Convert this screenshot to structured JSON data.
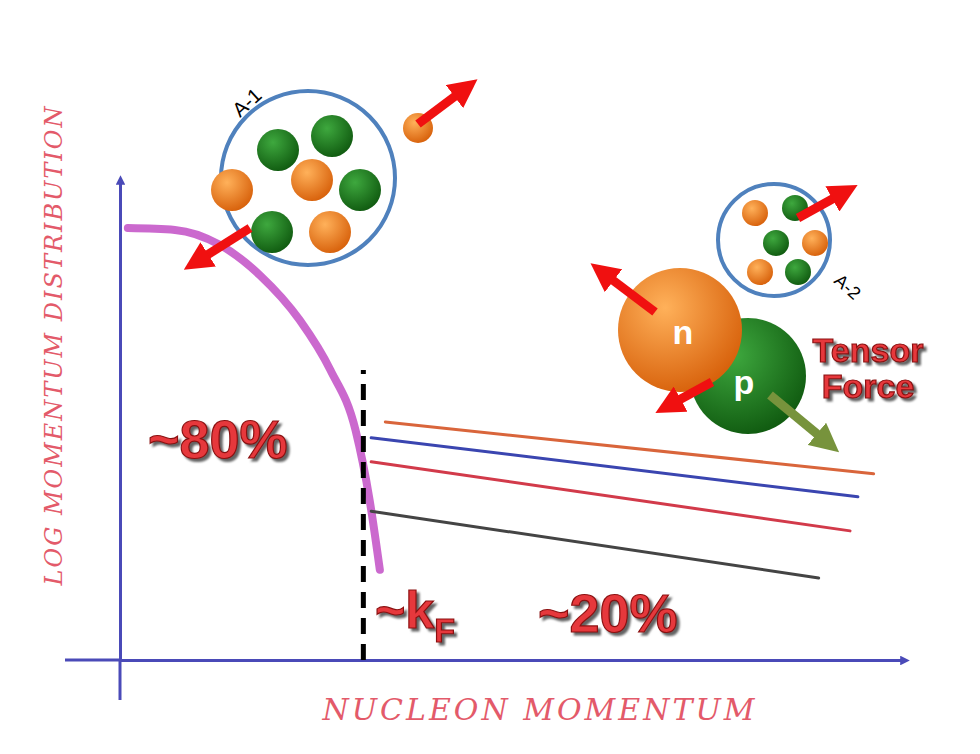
{
  "chart_data": {
    "type": "line",
    "x_label": "NUCLEON MOMENTUM",
    "y_label": "LOG MOMENTUM DISTRIBUTION",
    "xlim": [
      0,
      10
    ],
    "ylim": [
      0,
      10
    ],
    "xticks": [],
    "yticks": [],
    "tick_labels": false,
    "log": "y",
    "series": [
      {
        "color": "#c24fc6",
        "x": [
          0.1,
          0.7,
          1.27,
          1.78,
          2.29,
          2.68,
          3.0,
          3.18,
          3.31
        ],
        "values": [
          9.0,
          8.96,
          8.65,
          8.02,
          7.08,
          6.04,
          4.79,
          3.33,
          1.88
        ]
      },
      {
        "color": "#d9653b",
        "x": [
          3.38,
          9.6
        ],
        "values": [
          4.96,
          3.88
        ]
      },
      {
        "color": "#3a45b0",
        "x": [
          3.2,
          9.4
        ],
        "values": [
          4.63,
          3.4
        ]
      },
      {
        "color": "#d23a4a",
        "x": [
          3.2,
          9.3
        ],
        "values": [
          4.13,
          2.69
        ]
      },
      {
        "color": "#444444",
        "x": [
          3.2,
          8.9
        ],
        "values": [
          3.1,
          1.71
        ]
      }
    ],
    "kf_line": {
      "x": 3.1,
      "y": [
        0,
        6.04
      ],
      "label": "~k",
      "subscript": "F"
    },
    "annotations": [
      "~80%",
      "~20%"
    ],
    "illustration_labels": [
      "A-1",
      "A-2",
      "n",
      "p",
      "Tensor Force"
    ]
  }
}
